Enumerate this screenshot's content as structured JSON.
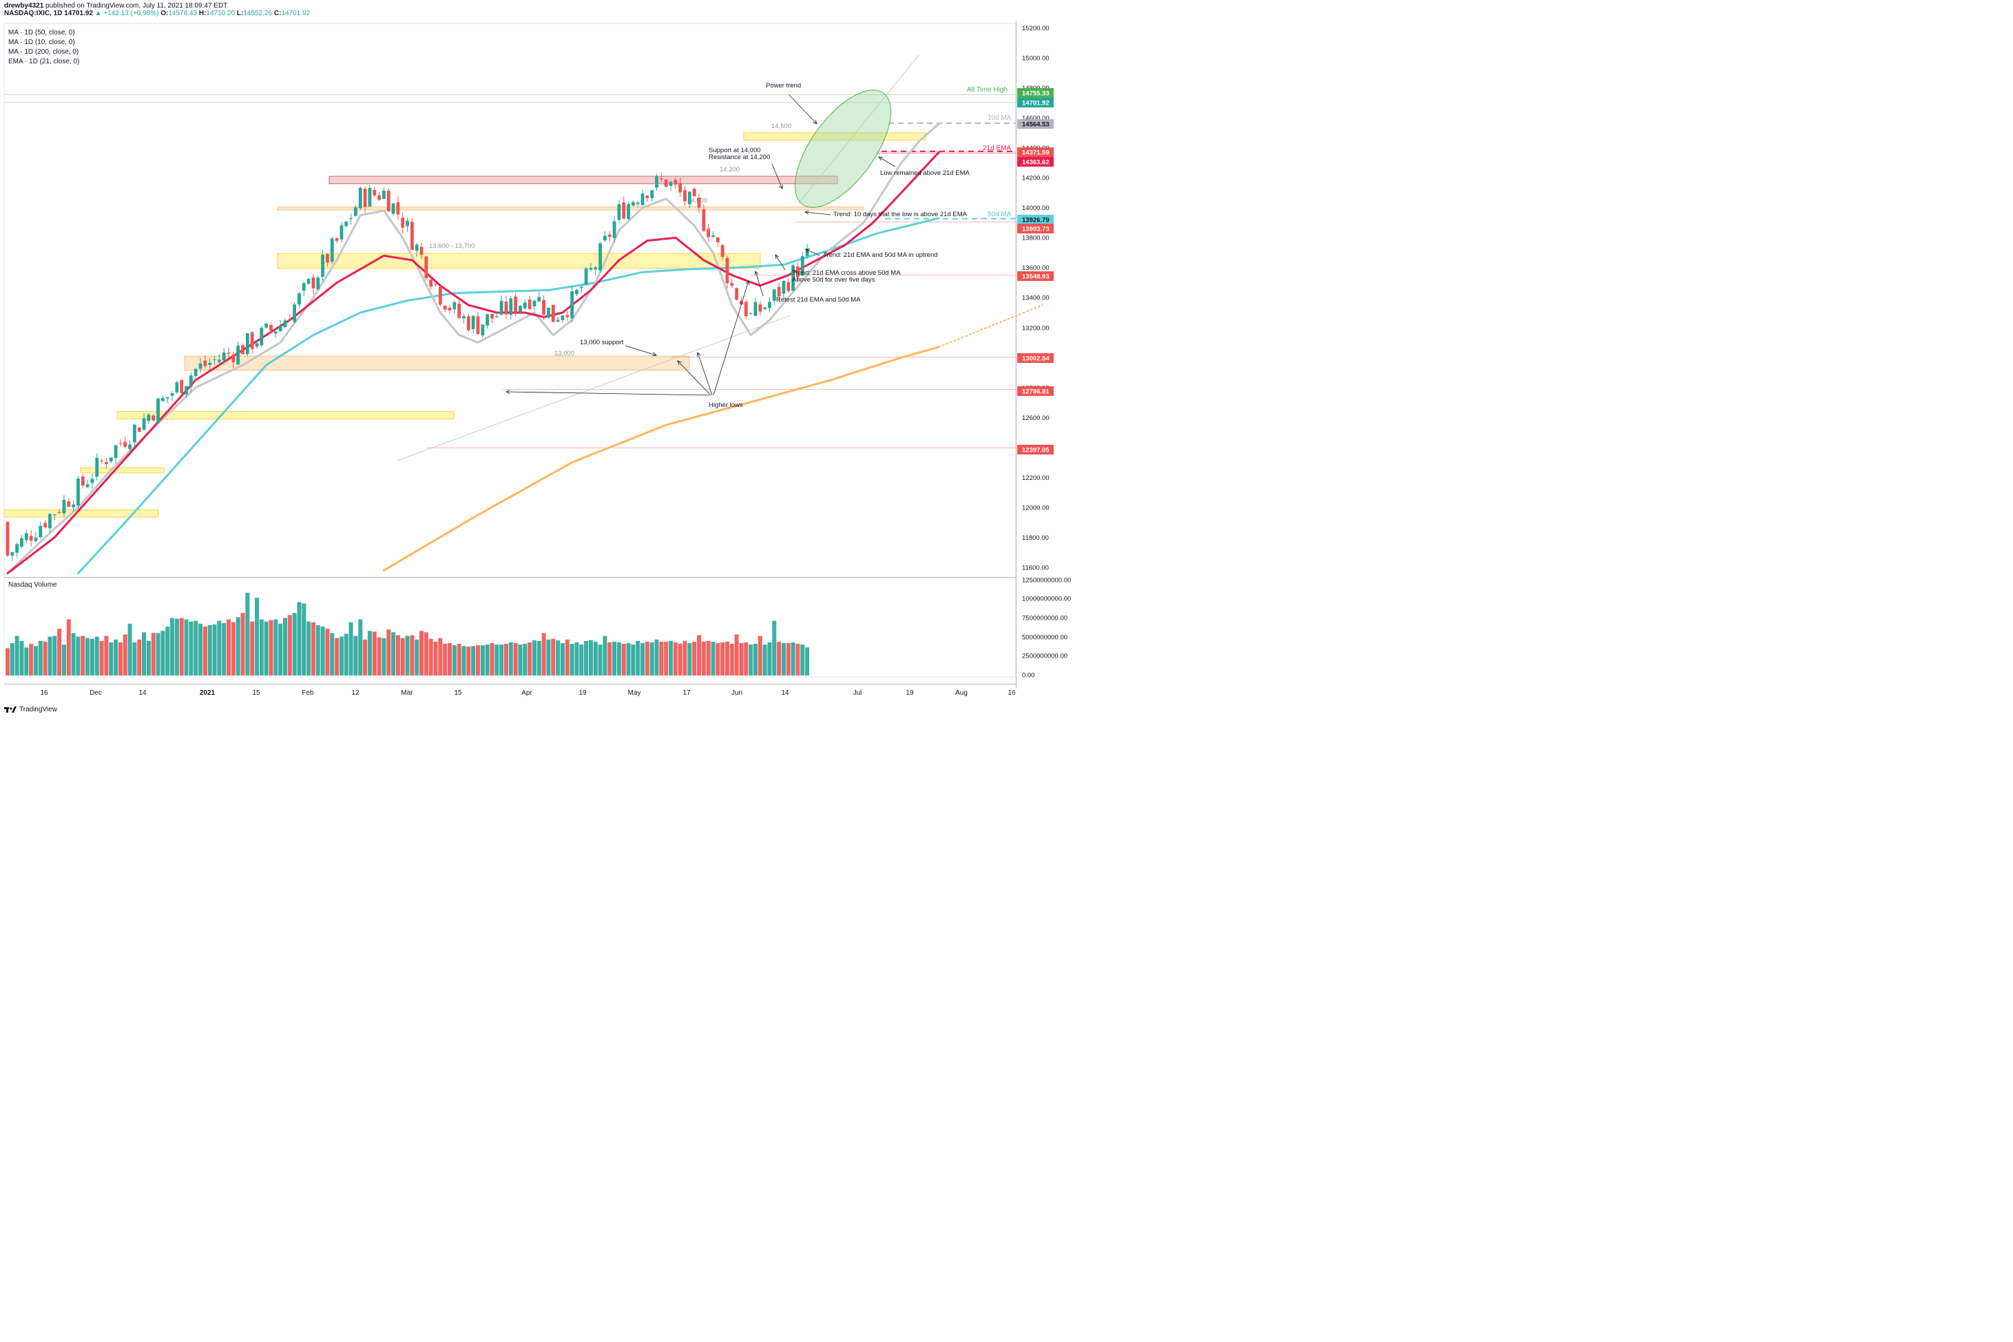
{
  "header": {
    "user": "drewby4321",
    "published": "published on TradingView.com, July 11, 2021 18:09:47 EDT",
    "symbol": "NASDAQ:IXIC, 1D",
    "last": "14701.92",
    "change": "▲ +142.13 (+0.98%)",
    "o_label": "O:",
    "o": "14578.43",
    "h_label": "H:",
    "h": "14710.20",
    "l_label": "L:",
    "l": "14552.26",
    "c_label": "C:",
    "c": "14701.92"
  },
  "indicators": [
    "MA · 1D (50, close, 0)",
    "MA · 1D (10, close, 0)",
    "MA · 1D (200, close, 0)",
    "EMA · 1D (21, close, 0)"
  ],
  "volume_title": "Nasdaq Volume",
  "footer": {
    "brand": "TradingView"
  },
  "colors": {
    "up": "#26a69a",
    "down": "#ef5350",
    "ma10": "#c5c6c9",
    "ema21": "#e91e4f",
    "ma50": "#5ccfdd",
    "ma200": "#ffb65c",
    "zone_yellow": "#fff3a0",
    "zone_orange": "#ffe3bf",
    "zone_red": "#f7c8c8"
  },
  "chart_data": {
    "type": "candlestick",
    "ylim": [
      11540,
      15230
    ],
    "price_ticks": [
      "15200.00",
      "15000.00",
      "14800.00",
      "14600.00",
      "14400.00",
      "14200.00",
      "14000.00",
      "13800.00",
      "13600.00",
      "13400.00",
      "13200.00",
      "13000.00",
      "12800.00",
      "12600.00",
      "12400.00",
      "12200.00",
      "12000.00",
      "11800.00",
      "11600.00"
    ],
    "volume_ticks": [
      "12500000000.00",
      "10000000000.00",
      "7500000000.00",
      "5000000000.00",
      "2500000000.00",
      "0.00"
    ],
    "x_ticks": [
      {
        "label": "16",
        "bold": false
      },
      {
        "label": "Dec",
        "bold": false
      },
      {
        "label": "14",
        "bold": false
      },
      {
        "label": "2021",
        "bold": true
      },
      {
        "label": "15",
        "bold": false
      },
      {
        "label": "Feb",
        "bold": false
      },
      {
        "label": "12",
        "bold": false
      },
      {
        "label": "Mar",
        "bold": false
      },
      {
        "label": "15",
        "bold": false
      },
      {
        "label": "Apr",
        "bold": false
      },
      {
        "label": "19",
        "bold": false
      },
      {
        "label": "May",
        "bold": false
      },
      {
        "label": "17",
        "bold": false
      },
      {
        "label": "Jun",
        "bold": false
      },
      {
        "label": "14",
        "bold": false
      },
      {
        "label": "Jul",
        "bold": false
      },
      {
        "label": "19",
        "bold": false
      },
      {
        "label": "Aug",
        "bold": false
      },
      {
        "label": "16",
        "bold": false
      }
    ],
    "price_badges": [
      {
        "value": "14755.33",
        "color": "#4caf50",
        "text_color": "#ffffff"
      },
      {
        "value": "14701.92",
        "color": "#26a69a",
        "text_color": "#ffffff"
      },
      {
        "value": "14564.53",
        "color": "#b2b5be",
        "text_color": "#131722"
      },
      {
        "value": "14371.59",
        "color": "#ef5350",
        "text_color": "#ffffff"
      },
      {
        "value": "14363.62",
        "color": "#e91e4f",
        "text_color": "#ffffff"
      },
      {
        "value": "13926.79",
        "color": "#5ccfdd",
        "text_color": "#131722"
      },
      {
        "value": "13903.73",
        "color": "#ef5350",
        "text_color": "#ffffff"
      },
      {
        "value": "13548.93",
        "color": "#ef5350",
        "text_color": "#ffffff"
      },
      {
        "value": "13002.54",
        "color": "#ef5350",
        "text_color": "#ffffff"
      },
      {
        "value": "12786.81",
        "color": "#ef5350",
        "text_color": "#ffffff"
      },
      {
        "value": "12397.05",
        "color": "#ef5350",
        "text_color": "#ffffff"
      }
    ],
    "zones": [
      {
        "label": "14,500",
        "low": 14450,
        "high": 14500,
        "kind": "yellow"
      },
      {
        "label": "14,200",
        "low": 14160,
        "high": 14210,
        "kind": "red"
      },
      {
        "label": "14,000",
        "low": 13985,
        "high": 14005,
        "kind": "orange"
      },
      {
        "label": "13,600 - 13,700",
        "low": 13595,
        "high": 13695,
        "kind": "yellow"
      },
      {
        "label": "13,000",
        "low": 12915,
        "high": 13010,
        "kind": "orange"
      },
      {
        "label": "",
        "low": 12590,
        "high": 12640,
        "kind": "yellow"
      },
      {
        "label": "",
        "low": 12230,
        "high": 12265,
        "kind": "yellow"
      },
      {
        "label": "",
        "low": 11935,
        "high": 11985,
        "kind": "yellow"
      }
    ],
    "labels": {
      "all_time_high": "All Time High",
      "ma10": "10d MA",
      "ema21": "21d EMA",
      "ma50": "50d MA"
    },
    "annotations": [
      "Power trend",
      "Support at 14,000",
      "Resistance at 14,200",
      "Low remained above 21d EMA",
      "Trend: 10 days that the low is above 21d EMA",
      "Trend: 21d EMA and 50d MA in uptrend",
      "Trend: 21d EMA cross above 50d MA",
      "Above 50d for over five days",
      "Retest 21d EMA and 50d MA",
      "13,000 support",
      "Higher lows"
    ],
    "ma10_line": [
      [
        0,
        11560
      ],
      [
        8,
        11800
      ],
      [
        15,
        12000
      ],
      [
        22,
        12250
      ],
      [
        30,
        12500
      ],
      [
        40,
        12800
      ],
      [
        50,
        12950
      ],
      [
        58,
        13100
      ],
      [
        65,
        13400
      ],
      [
        70,
        13650
      ],
      [
        75,
        13950
      ],
      [
        80,
        13980
      ],
      [
        84,
        13800
      ],
      [
        88,
        13550
      ],
      [
        92,
        13300
      ],
      [
        96,
        13150
      ],
      [
        100,
        13100
      ],
      [
        106,
        13200
      ],
      [
        112,
        13300
      ],
      [
        116,
        13150
      ],
      [
        120,
        13250
      ],
      [
        125,
        13500
      ],
      [
        130,
        13850
      ],
      [
        135,
        14000
      ],
      [
        140,
        14060
      ],
      [
        146,
        13880
      ],
      [
        150,
        13700
      ],
      [
        154,
        13350
      ],
      [
        158,
        13150
      ],
      [
        162,
        13250
      ],
      [
        166,
        13400
      ],
      [
        170,
        13550
      ],
      [
        174,
        13700
      ],
      [
        178,
        13800
      ],
      [
        182,
        13900
      ],
      [
        186,
        14100
      ],
      [
        190,
        14300
      ],
      [
        194,
        14450
      ],
      [
        198,
        14560
      ]
    ],
    "ema21_line": [
      [
        0,
        11560
      ],
      [
        10,
        11800
      ],
      [
        20,
        12150
      ],
      [
        30,
        12500
      ],
      [
        40,
        12850
      ],
      [
        50,
        13050
      ],
      [
        60,
        13250
      ],
      [
        70,
        13500
      ],
      [
        80,
        13680
      ],
      [
        86,
        13650
      ],
      [
        92,
        13480
      ],
      [
        98,
        13350
      ],
      [
        104,
        13300
      ],
      [
        110,
        13300
      ],
      [
        114,
        13270
      ],
      [
        118,
        13300
      ],
      [
        124,
        13450
      ],
      [
        130,
        13650
      ],
      [
        136,
        13780
      ],
      [
        142,
        13800
      ],
      [
        148,
        13650
      ],
      [
        154,
        13550
      ],
      [
        160,
        13480
      ],
      [
        166,
        13550
      ],
      [
        172,
        13650
      ],
      [
        178,
        13750
      ],
      [
        184,
        13900
      ],
      [
        190,
        14100
      ],
      [
        198,
        14370
      ]
    ],
    "ma50_line": [
      [
        15,
        11560
      ],
      [
        25,
        11900
      ],
      [
        35,
        12250
      ],
      [
        45,
        12600
      ],
      [
        55,
        12950
      ],
      [
        65,
        13150
      ],
      [
        75,
        13300
      ],
      [
        85,
        13380
      ],
      [
        95,
        13430
      ],
      [
        105,
        13440
      ],
      [
        115,
        13450
      ],
      [
        125,
        13500
      ],
      [
        135,
        13570
      ],
      [
        145,
        13590
      ],
      [
        155,
        13600
      ],
      [
        165,
        13620
      ],
      [
        175,
        13720
      ],
      [
        185,
        13830
      ],
      [
        198,
        13930
      ]
    ],
    "ma200_line": [
      [
        80,
        11580
      ],
      [
        100,
        11950
      ],
      [
        120,
        12300
      ],
      [
        140,
        12550
      ],
      [
        160,
        12720
      ],
      [
        175,
        12850
      ],
      [
        190,
        13000
      ],
      [
        198,
        13070
      ]
    ],
    "ma200_projection": [
      [
        198,
        13070
      ],
      [
        220,
        13350
      ]
    ],
    "volume_billions": [
      3.8,
      4.5,
      5.5,
      4.8,
      3.9,
      4.4,
      4.1,
      4.8,
      4.7,
      5.4,
      5.5,
      6.5,
      4.3,
      7.8,
      5.9,
      5.4,
      5.5,
      5.2,
      5.1,
      5.4,
      4.8,
      5.5,
      4.6,
      5.0,
      4.6,
      5.7,
      7.2,
      4.6,
      5.0,
      6.0,
      4.8,
      5.9,
      5.9,
      6.2,
      6.8,
      8.0,
      7.9,
      8.0,
      7.8,
      7.5,
      7.6,
      7.2,
      6.8,
      7.0,
      7.1,
      7.6,
      7.3,
      7.8,
      7.4,
      8.1,
      8.7,
      11.5,
      7.5,
      10.8,
      7.8,
      7.5,
      7.7,
      7.8,
      7.2,
      8.0,
      8.4,
      8.7,
      10.2,
      10.0,
      7.5,
      7.4,
      7.0,
      6.8,
      6.5,
      5.9,
      5.2,
      5.4,
      5.8,
      7.4,
      5.5,
      7.8,
      5.0,
      6.2,
      6.1,
      5.3,
      5.2,
      6.4,
      6.0,
      5.6,
      5.2,
      5.5,
      5.6,
      5.0,
      6.2,
      6.0,
      5.1,
      4.7,
      5.2,
      4.4,
      4.5,
      4.2,
      4.4,
      4.1,
      4.0,
      4.1,
      4.2,
      4.2,
      4.3,
      4.5,
      4.3,
      4.3,
      4.4,
      4.6,
      4.5,
      4.3,
      4.4,
      4.6,
      4.9,
      4.8,
      5.9,
      5.0,
      5.1,
      4.9,
      4.5,
      5.0,
      4.4,
      4.6,
      4.3,
      4.8,
      4.9,
      4.7,
      4.3,
      5.5,
      4.6,
      4.7,
      4.6,
      4.4,
      4.5,
      4.3,
      4.8,
      4.5,
      4.7,
      4.6,
      5.0,
      4.7,
      4.7,
      4.8,
      4.6,
      4.4,
      4.8,
      4.5,
      4.7,
      5.6,
      4.7,
      4.8,
      4.7,
      4.5,
      4.6,
      4.7,
      4.4,
      5.7,
      4.5,
      4.6,
      4.3,
      4.4,
      5.5,
      4.3,
      4.6,
      7.6,
      4.7,
      4.5,
      4.5,
      4.6,
      4.4,
      4.3,
      3.9
    ]
  }
}
